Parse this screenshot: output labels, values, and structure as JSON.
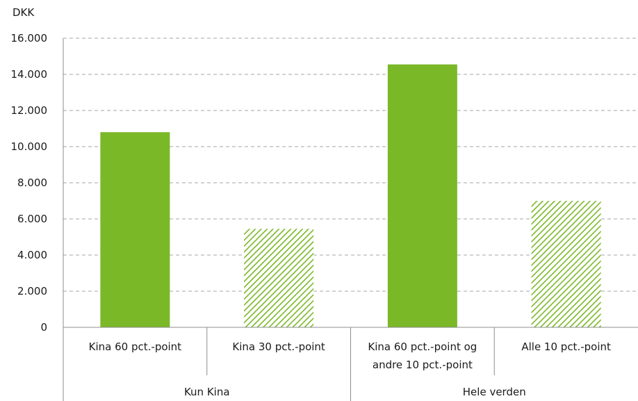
{
  "chart_data": {
    "type": "bar",
    "unit_label": "DKK",
    "ylim": [
      0,
      16000
    ],
    "yticks": [
      {
        "value": 0,
        "label": "0"
      },
      {
        "value": 2000,
        "label": "2.000"
      },
      {
        "value": 4000,
        "label": "4.000"
      },
      {
        "value": 6000,
        "label": "6.000"
      },
      {
        "value": 8000,
        "label": "8.000"
      },
      {
        "value": 10000,
        "label": "10.000"
      },
      {
        "value": 12000,
        "label": "12.000"
      },
      {
        "value": 14000,
        "label": "14.000"
      },
      {
        "value": 16000,
        "label": "16.000"
      }
    ],
    "grid": true,
    "categories": [
      {
        "lines": [
          "Kina 60 pct.-point"
        ],
        "group": 0,
        "value": 10800,
        "fill": "solid"
      },
      {
        "lines": [
          "Kina 30 pct.-point"
        ],
        "group": 0,
        "value": 5450,
        "fill": "hatched"
      },
      {
        "lines": [
          "Kina 60 pct.-point og",
          "andre 10 pct.-point"
        ],
        "group": 1,
        "value": 14550,
        "fill": "solid"
      },
      {
        "lines": [
          "Alle 10 pct.-point"
        ],
        "group": 1,
        "value": 7000,
        "fill": "hatched"
      }
    ],
    "groups": [
      "Kun Kina",
      "Hele verden"
    ],
    "colors": {
      "bar": "#7ab828",
      "hatch_light": "#ffffff",
      "grid": "#a6a6a6",
      "axis": "#8c8c8c"
    }
  }
}
